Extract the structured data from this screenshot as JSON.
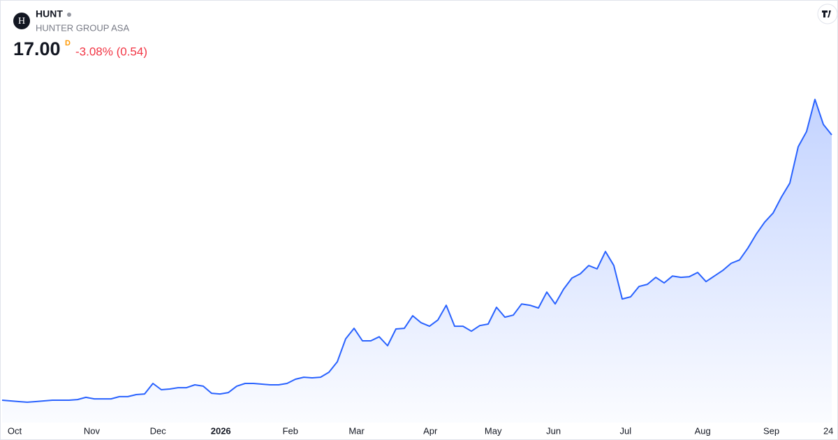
{
  "header": {
    "symbol": "HUNT",
    "company": "HUNTER GROUP ASA",
    "logo_letter": "H",
    "price": "17.00",
    "currency_flag": "D",
    "change": "-3.08% (0.54)"
  },
  "chart_data": {
    "type": "area",
    "color": "#2962ff",
    "values": [
      1.32,
      1.28,
      1.24,
      1.2,
      1.24,
      1.28,
      1.32,
      1.32,
      1.32,
      1.36,
      1.49,
      1.4,
      1.4,
      1.4,
      1.53,
      1.53,
      1.65,
      1.69,
      2.31,
      1.94,
      1.98,
      2.06,
      2.06,
      2.23,
      2.15,
      1.73,
      1.69,
      1.77,
      2.15,
      2.31,
      2.31,
      2.27,
      2.23,
      2.23,
      2.31,
      2.56,
      2.68,
      2.64,
      2.68,
      2.97,
      3.59,
      4.95,
      5.57,
      4.83,
      4.83,
      5.07,
      4.54,
      5.53,
      5.57,
      6.31,
      5.9,
      5.69,
      6.06,
      6.93,
      5.69,
      5.69,
      5.4,
      5.73,
      5.82,
      6.81,
      6.23,
      6.35,
      7.01,
      6.93,
      6.77,
      7.71,
      7.01,
      7.88,
      8.54,
      8.79,
      9.28,
      9.08,
      10.11,
      9.28,
      7.3,
      7.43,
      8.04,
      8.17,
      8.58,
      8.25,
      8.66,
      8.58,
      8.62,
      8.87,
      8.33,
      8.66,
      8.99,
      9.41,
      9.61,
      10.31,
      11.14,
      11.84,
      12.38,
      13.33,
      14.15,
      16.3,
      17.2,
      19.1,
      17.62,
      17.0
    ],
    "xlim": [
      0,
      99
    ],
    "ylim": [
      0,
      22
    ],
    "xticks": [
      {
        "value": 1.5,
        "label": "Oct"
      },
      {
        "value": 10.7,
        "label": "Nov"
      },
      {
        "value": 18.6,
        "label": "Dec"
      },
      {
        "value": 26.1,
        "label": "2026"
      },
      {
        "value": 34.4,
        "label": "Feb"
      },
      {
        "value": 42.3,
        "label": "Mar"
      },
      {
        "value": 51.1,
        "label": "Apr"
      },
      {
        "value": 58.6,
        "label": "May"
      },
      {
        "value": 65.8,
        "label": "Jun"
      },
      {
        "value": 74.4,
        "label": "Jul"
      },
      {
        "value": 83.6,
        "label": "Aug"
      },
      {
        "value": 91.8,
        "label": "Sep"
      },
      {
        "value": 98.6,
        "label": "24"
      }
    ]
  }
}
